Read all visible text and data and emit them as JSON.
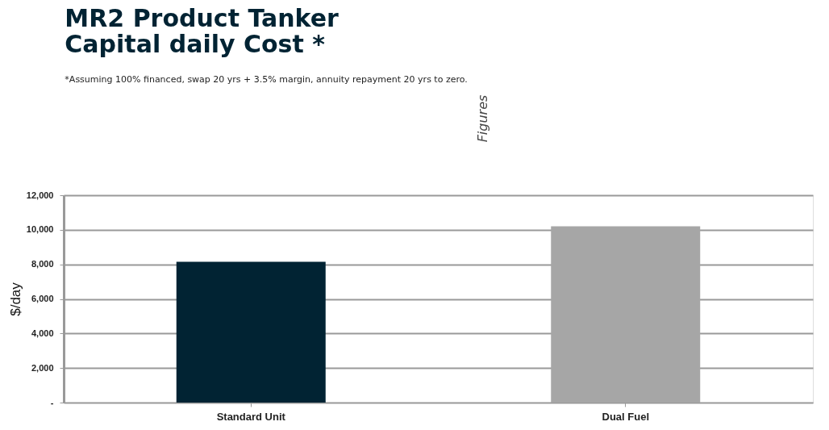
{
  "chart_data": {
    "type": "bar",
    "title": [
      "MR2 Product Tanker",
      "Capital daily Cost *"
    ],
    "subtitle": "*Assuming 100% financed, swap 20 yrs + 3.5% margin, annuity repayment 20 yrs to zero.",
    "annotations": [
      "Figures"
    ],
    "ylabel": "$/day",
    "categories": [
      "Standard Unit",
      "Dual Fuel"
    ],
    "values": [
      8150,
      10200
    ],
    "colors": [
      "#012333",
      "#a6a6a6"
    ],
    "ylim": [
      0,
      12000
    ],
    "yticks": [
      {
        "value": 0,
        "label": "-"
      },
      {
        "value": 2000,
        "label": "2,000"
      },
      {
        "value": 4000,
        "label": "4,000"
      },
      {
        "value": 6000,
        "label": "6,000"
      },
      {
        "value": 8000,
        "label": "8,000"
      },
      {
        "value": 10000,
        "label": "10,000"
      },
      {
        "value": 12000,
        "label": "12,000"
      }
    ],
    "grid": "y",
    "legend": false
  }
}
